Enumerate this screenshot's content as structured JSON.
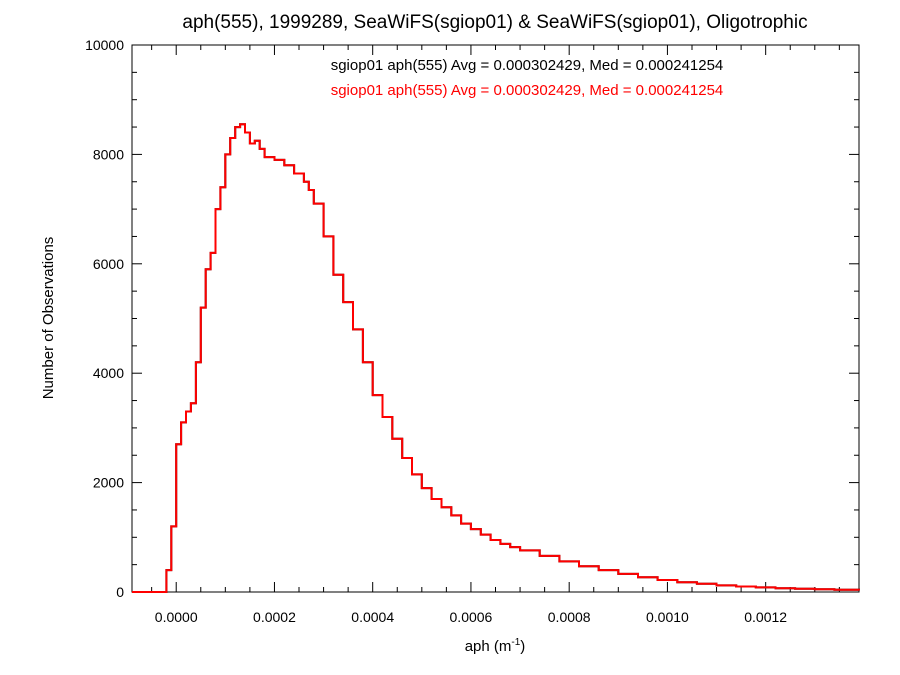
{
  "chart_data": {
    "type": "line",
    "style": "histogram-step",
    "title": "aph(555), 1999289, SeaWiFS(sgiop01) & SeaWiFS(sgiop01), Oligotrophic",
    "xlabel_main": "aph (m",
    "xlabel_sup": "-1",
    "xlabel_close": ")",
    "ylabel": "Number of Observations",
    "xlim": [
      -9e-05,
      0.00139
    ],
    "ylim": [
      0,
      10000
    ],
    "x_ticks": [
      "0.0000",
      "0.0002",
      "0.0004",
      "0.0006",
      "0.0008",
      "0.0010",
      "0.0012"
    ],
    "x_tick_values": [
      0.0,
      0.0002,
      0.0004,
      0.0006,
      0.0008,
      0.001,
      0.0012
    ],
    "y_ticks": [
      "0",
      "2000",
      "4000",
      "6000",
      "8000",
      "10000"
    ],
    "y_tick_values": [
      0,
      2000,
      4000,
      6000,
      8000,
      10000
    ],
    "grid": false,
    "legend_placement": "top-right",
    "series": [
      {
        "name": "sgiop01 aph(555) Avg = 0.000302429, Med = 0.000241254",
        "color": "#000000",
        "points": [
          [
            -9e-05,
            0
          ],
          [
            -3e-05,
            0
          ],
          [
            -2e-05,
            400
          ],
          [
            -1e-05,
            1200
          ],
          [
            0.0,
            2700
          ],
          [
            1e-05,
            3100
          ],
          [
            2e-05,
            3300
          ],
          [
            3e-05,
            3450
          ],
          [
            4e-05,
            4200
          ],
          [
            5e-05,
            5200
          ],
          [
            6e-05,
            5900
          ],
          [
            7e-05,
            6200
          ],
          [
            8e-05,
            7000
          ],
          [
            9e-05,
            7400
          ],
          [
            0.0001,
            8000
          ],
          [
            0.00011,
            8300
          ],
          [
            0.00012,
            8500
          ],
          [
            0.00013,
            8550
          ],
          [
            0.00014,
            8400
          ],
          [
            0.00015,
            8200
          ],
          [
            0.00016,
            8250
          ],
          [
            0.00017,
            8100
          ],
          [
            0.00018,
            7950
          ],
          [
            0.0002,
            7900
          ],
          [
            0.00022,
            7800
          ],
          [
            0.00024,
            7650
          ],
          [
            0.00026,
            7500
          ],
          [
            0.00027,
            7350
          ],
          [
            0.00028,
            7100
          ],
          [
            0.0003,
            6500
          ],
          [
            0.00032,
            5800
          ],
          [
            0.00034,
            5300
          ],
          [
            0.00036,
            4800
          ],
          [
            0.00038,
            4200
          ],
          [
            0.0004,
            3600
          ],
          [
            0.00042,
            3200
          ],
          [
            0.00044,
            2800
          ],
          [
            0.00046,
            2450
          ],
          [
            0.00048,
            2150
          ],
          [
            0.0005,
            1900
          ],
          [
            0.00052,
            1700
          ],
          [
            0.00054,
            1550
          ],
          [
            0.00056,
            1400
          ],
          [
            0.00058,
            1250
          ],
          [
            0.0006,
            1150
          ],
          [
            0.00062,
            1050
          ],
          [
            0.00064,
            950
          ],
          [
            0.00066,
            880
          ],
          [
            0.00068,
            820
          ],
          [
            0.0007,
            760
          ],
          [
            0.00074,
            660
          ],
          [
            0.00078,
            560
          ],
          [
            0.00082,
            470
          ],
          [
            0.00086,
            400
          ],
          [
            0.0009,
            330
          ],
          [
            0.00094,
            270
          ],
          [
            0.00098,
            220
          ],
          [
            0.00102,
            180
          ],
          [
            0.00106,
            150
          ],
          [
            0.0011,
            120
          ],
          [
            0.00114,
            100
          ],
          [
            0.00118,
            85
          ],
          [
            0.00122,
            70
          ],
          [
            0.00126,
            60
          ],
          [
            0.0013,
            50
          ],
          [
            0.00134,
            40
          ],
          [
            0.00139,
            30
          ]
        ]
      },
      {
        "name": "sgiop01 aph(555) Avg = 0.000302429, Med = 0.000241254",
        "color": "#ff0000",
        "points": [
          [
            -9e-05,
            0
          ],
          [
            -3e-05,
            0
          ],
          [
            -2e-05,
            400
          ],
          [
            -1e-05,
            1200
          ],
          [
            0.0,
            2700
          ],
          [
            1e-05,
            3100
          ],
          [
            2e-05,
            3300
          ],
          [
            3e-05,
            3450
          ],
          [
            4e-05,
            4200
          ],
          [
            5e-05,
            5200
          ],
          [
            6e-05,
            5900
          ],
          [
            7e-05,
            6200
          ],
          [
            8e-05,
            7000
          ],
          [
            9e-05,
            7400
          ],
          [
            0.0001,
            8000
          ],
          [
            0.00011,
            8300
          ],
          [
            0.00012,
            8500
          ],
          [
            0.00013,
            8550
          ],
          [
            0.00014,
            8400
          ],
          [
            0.00015,
            8200
          ],
          [
            0.00016,
            8250
          ],
          [
            0.00017,
            8100
          ],
          [
            0.00018,
            7950
          ],
          [
            0.0002,
            7900
          ],
          [
            0.00022,
            7800
          ],
          [
            0.00024,
            7650
          ],
          [
            0.00026,
            7500
          ],
          [
            0.00027,
            7350
          ],
          [
            0.00028,
            7100
          ],
          [
            0.0003,
            6500
          ],
          [
            0.00032,
            5800
          ],
          [
            0.00034,
            5300
          ],
          [
            0.00036,
            4800
          ],
          [
            0.00038,
            4200
          ],
          [
            0.0004,
            3600
          ],
          [
            0.00042,
            3200
          ],
          [
            0.00044,
            2800
          ],
          [
            0.00046,
            2450
          ],
          [
            0.00048,
            2150
          ],
          [
            0.0005,
            1900
          ],
          [
            0.00052,
            1700
          ],
          [
            0.00054,
            1550
          ],
          [
            0.00056,
            1400
          ],
          [
            0.00058,
            1250
          ],
          [
            0.0006,
            1150
          ],
          [
            0.00062,
            1050
          ],
          [
            0.00064,
            950
          ],
          [
            0.00066,
            880
          ],
          [
            0.00068,
            820
          ],
          [
            0.0007,
            760
          ],
          [
            0.00074,
            660
          ],
          [
            0.00078,
            560
          ],
          [
            0.00082,
            470
          ],
          [
            0.00086,
            400
          ],
          [
            0.0009,
            330
          ],
          [
            0.00094,
            270
          ],
          [
            0.00098,
            220
          ],
          [
            0.00102,
            180
          ],
          [
            0.00106,
            150
          ],
          [
            0.0011,
            120
          ],
          [
            0.00114,
            100
          ],
          [
            0.00118,
            85
          ],
          [
            0.00122,
            70
          ],
          [
            0.00126,
            60
          ],
          [
            0.0013,
            50
          ],
          [
            0.00134,
            40
          ],
          [
            0.00139,
            30
          ]
        ]
      }
    ]
  }
}
